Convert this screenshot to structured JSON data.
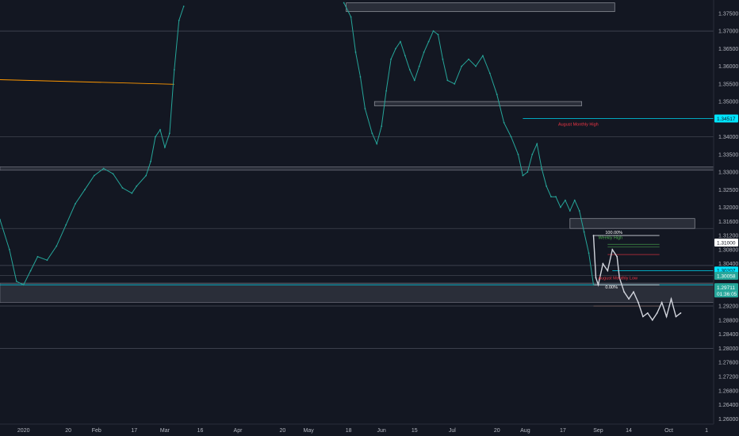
{
  "chart_data": {
    "type": "line",
    "title": "",
    "xlabel": "",
    "ylabel": "",
    "ylim": [
      1.2585,
      1.3788
    ],
    "y_ticks": [
      1.375,
      1.37,
      1.365,
      1.36,
      1.355,
      1.35,
      1.345,
      1.34,
      1.335,
      1.33,
      1.325,
      1.32,
      1.316,
      1.312,
      1.308,
      1.304,
      1.296,
      1.292,
      1.288,
      1.284,
      1.28,
      1.276,
      1.272,
      1.268,
      1.264,
      1.26
    ],
    "x_ticks": [
      {
        "label": "2020",
        "t": 0
      },
      {
        "label": "20",
        "t": 19
      },
      {
        "label": "Feb",
        "t": 31
      },
      {
        "label": "17",
        "t": 47
      },
      {
        "label": "Mar",
        "t": 60
      },
      {
        "label": "16",
        "t": 75
      },
      {
        "label": "Apr",
        "t": 91
      },
      {
        "label": "20",
        "t": 110
      },
      {
        "label": "May",
        "t": 121
      },
      {
        "label": "18",
        "t": 138
      },
      {
        "label": "Jun",
        "t": 152
      },
      {
        "label": "15",
        "t": 166
      },
      {
        "label": "Jul",
        "t": 182
      },
      {
        "label": "20",
        "t": 201
      },
      {
        "label": "Aug",
        "t": 213
      },
      {
        "label": "17",
        "t": 229
      },
      {
        "label": "Sep",
        "t": 244
      },
      {
        "label": "14",
        "t": 257
      },
      {
        "label": "Oct",
        "t": 274
      },
      {
        "label": "1",
        "t": 290
      }
    ],
    "series": [
      {
        "color": "#26a69a",
        "points": [
          [
            -10,
            1.3165
          ],
          [
            -6,
            1.308
          ],
          [
            -3,
            1.299
          ],
          [
            0,
            1.298
          ],
          [
            3,
            1.302
          ],
          [
            6,
            1.306
          ],
          [
            10,
            1.305
          ],
          [
            14,
            1.309
          ],
          [
            18,
            1.315
          ],
          [
            22,
            1.321
          ],
          [
            26,
            1.325
          ],
          [
            30,
            1.329
          ],
          [
            34,
            1.331
          ],
          [
            38,
            1.3295
          ],
          [
            42,
            1.3255
          ],
          [
            46,
            1.324
          ],
          [
            48,
            1.326
          ],
          [
            52,
            1.329
          ],
          [
            54,
            1.333
          ],
          [
            56,
            1.34
          ],
          [
            58,
            1.342
          ],
          [
            60,
            1.337
          ],
          [
            62,
            1.341
          ],
          [
            64,
            1.359
          ],
          [
            66,
            1.373
          ],
          [
            68,
            1.377
          ]
        ]
      },
      {
        "color": "#26a69a",
        "points": [
          [
            136,
            1.378
          ],
          [
            139,
            1.374
          ],
          [
            141,
            1.364
          ],
          [
            143,
            1.357
          ],
          [
            145,
            1.348
          ],
          [
            148,
            1.341
          ],
          [
            150,
            1.338
          ],
          [
            152,
            1.343
          ],
          [
            154,
            1.353
          ],
          [
            156,
            1.362
          ],
          [
            158,
            1.365
          ],
          [
            160,
            1.367
          ],
          [
            162,
            1.363
          ],
          [
            164,
            1.359
          ],
          [
            166,
            1.356
          ],
          [
            168,
            1.36
          ],
          [
            170,
            1.364
          ],
          [
            172,
            1.367
          ],
          [
            174,
            1.37
          ],
          [
            176,
            1.369
          ],
          [
            178,
            1.362
          ],
          [
            180,
            1.356
          ],
          [
            183,
            1.355
          ],
          [
            186,
            1.36
          ],
          [
            189,
            1.362
          ],
          [
            192,
            1.36
          ],
          [
            195,
            1.363
          ],
          [
            198,
            1.358
          ],
          [
            201,
            1.352
          ],
          [
            204,
            1.344
          ],
          [
            207,
            1.34
          ],
          [
            210,
            1.335
          ],
          [
            212,
            1.329
          ],
          [
            214,
            1.33
          ],
          [
            216,
            1.335
          ],
          [
            218,
            1.338
          ],
          [
            220,
            1.331
          ],
          [
            222,
            1.326
          ],
          [
            224,
            1.323
          ],
          [
            226,
            1.323
          ],
          [
            228,
            1.32
          ],
          [
            230,
            1.322
          ],
          [
            232,
            1.319
          ],
          [
            234,
            1.322
          ],
          [
            236,
            1.319
          ],
          [
            238,
            1.313
          ],
          [
            240,
            1.307
          ],
          [
            242,
            1.298
          ]
        ]
      },
      {
        "color": "#d1d4dc",
        "points": [
          [
            242,
            1.312
          ],
          [
            243,
            1.3
          ],
          [
            244,
            1.298
          ],
          [
            246,
            1.304
          ],
          [
            248,
            1.302
          ],
          [
            250,
            1.308
          ],
          [
            252,
            1.306
          ],
          [
            253,
            1.3
          ],
          [
            255,
            1.296
          ],
          [
            257,
            1.294
          ],
          [
            259,
            1.296
          ],
          [
            261,
            1.293
          ],
          [
            263,
            1.289
          ],
          [
            265,
            1.29
          ],
          [
            267,
            1.288
          ],
          [
            269,
            1.29
          ],
          [
            271,
            1.293
          ],
          [
            273,
            1.289
          ],
          [
            275,
            1.294
          ],
          [
            277,
            1.289
          ],
          [
            279,
            1.29
          ]
        ]
      }
    ],
    "current_price": "1.29711",
    "countdown": "01:36:05",
    "price_labels": [
      {
        "value": "1.34517",
        "kind": "cyan"
      },
      {
        "value": "1.31000",
        "kind": "white"
      },
      {
        "value": "1.30207",
        "kind": "cyan"
      },
      {
        "value": "1.30058",
        "kind": "green"
      }
    ],
    "horizontal_levels": [
      1.37,
      1.34,
      1.314,
      1.3035,
      1.3007,
      1.298,
      1.298,
      1.292,
      1.28
    ],
    "annotations": [
      {
        "text": "August Monthly High",
        "color": "#f23645",
        "t": 227,
        "y": 1.3432
      },
      {
        "text": "August Monthly Low",
        "color": "#f23645",
        "t": 244,
        "y": 1.2995
      },
      {
        "text": "100.00%",
        "color": "#ffffff",
        "t": 247,
        "y": 1.3125
      },
      {
        "text": "0.00%",
        "color": "#ffffff",
        "t": 247,
        "y": 1.297
      },
      {
        "text": "Weekly High",
        "color": "#4caf50",
        "t": 244,
        "y": 1.311
      }
    ]
  }
}
